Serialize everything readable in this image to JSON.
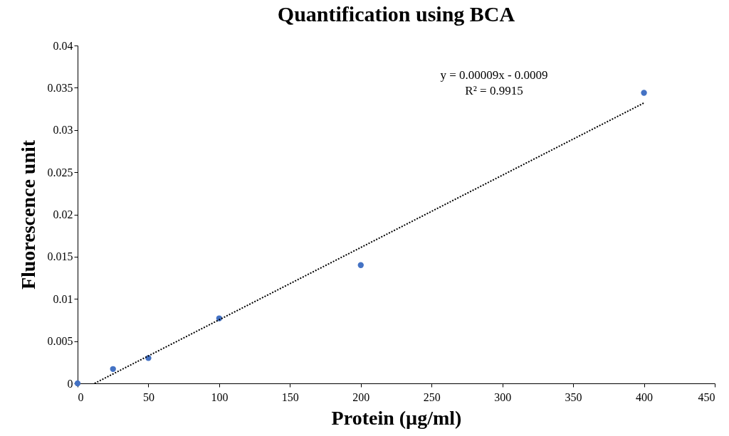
{
  "chart_data": {
    "type": "scatter",
    "title": "Quantification using BCA",
    "xlabel": "Protein (µg/ml)",
    "ylabel": "Fluorescence unit",
    "x": [
      0,
      25,
      50,
      100,
      200,
      400
    ],
    "series": [
      {
        "color": "#4472c4",
        "marker": "circle",
        "values": [
          0,
          0.0017,
          0.003,
          0.0077,
          0.014,
          0.0344
        ]
      },
      {
        "type": "line",
        "color": "#000000",
        "line_style": "dotted",
        "x": [
          12,
          400
        ],
        "values": [
          0,
          0.0332
        ]
      }
    ],
    "annotations": [
      "y = 0.00009x - 0.0009",
      "R² = 0.9915"
    ],
    "xlim": [
      0,
      450
    ],
    "xticks": [
      0,
      50,
      100,
      150,
      200,
      250,
      300,
      350,
      400,
      450
    ],
    "ylim": [
      0,
      0.04
    ],
    "yticks": [
      0,
      0.005,
      0.01,
      0.015,
      0.02,
      0.025,
      0.03,
      0.035,
      0.04
    ],
    "grid": false
  }
}
